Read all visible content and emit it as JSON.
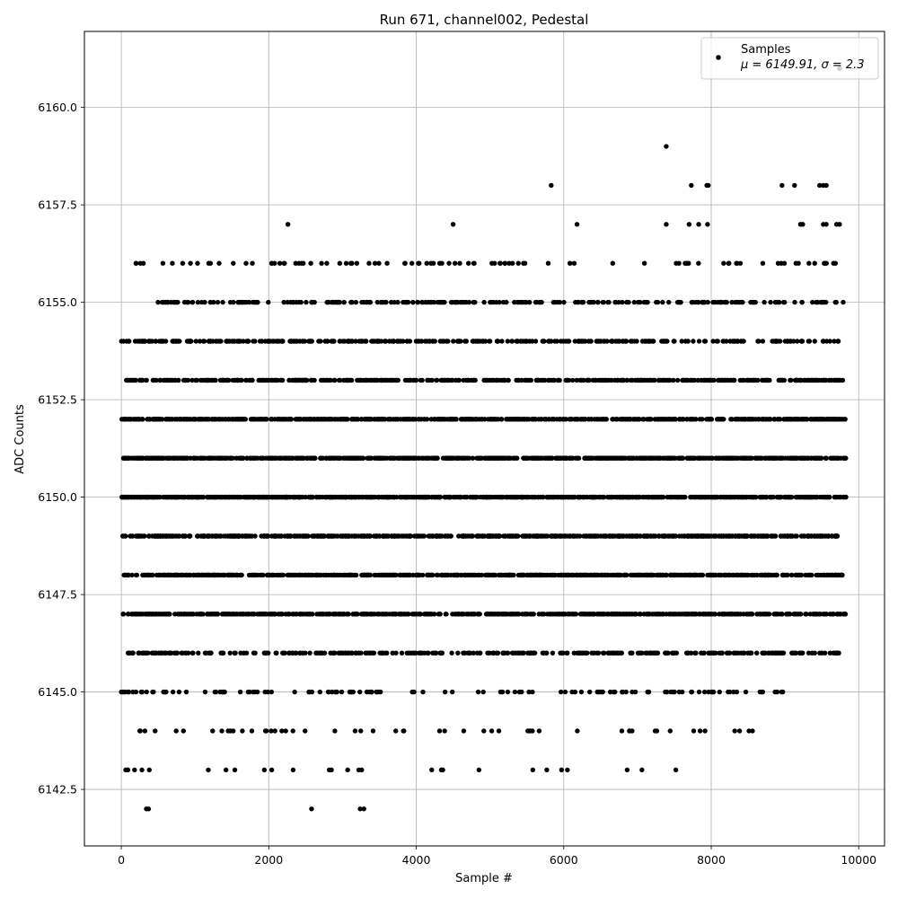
{
  "chart_data": {
    "type": "scatter",
    "title": "Run 671, channel002, Pedestal",
    "xlabel": "Sample #",
    "ylabel": "ADC Counts",
    "xlim": [
      -500,
      10350
    ],
    "ylim": [
      6141.05,
      6161.95
    ],
    "xticks": [
      0,
      2000,
      4000,
      6000,
      8000,
      10000
    ],
    "xtick_labels": [
      "0",
      "2000",
      "4000",
      "6000",
      "8000",
      "10000"
    ],
    "yticks": [
      6142.5,
      6145.0,
      6147.5,
      6150.0,
      6152.5,
      6155.0,
      6157.5,
      6160.0
    ],
    "ytick_labels": [
      "6142.5",
      "6145.0",
      "6147.5",
      "6150.0",
      "6152.5",
      "6155.0",
      "6157.5",
      "6160.0"
    ],
    "grid": true,
    "legend_position": "top-right",
    "legend": {
      "label": "Samples",
      "stats": "μ = 6149.91, σ = 2.3"
    },
    "marker_color": "#000000",
    "x_range": [
      0,
      9830
    ],
    "series": [
      {
        "bands": [
          {
            "y": 6142,
            "points": [
              {
                "x": 340,
                "y": 6142
              },
              {
                "x": 370,
                "y": 6142
              },
              {
                "x": 2580,
                "y": 6142
              },
              {
                "x": 3240,
                "y": 6142
              },
              {
                "x": 3290,
                "y": 6142
              }
            ]
          },
          {
            "y": 6143,
            "points": [
              {
                "x": 60,
                "y": 6143
              },
              {
                "x": 90,
                "y": 6143
              },
              {
                "x": 180,
                "y": 6143
              },
              {
                "x": 280,
                "y": 6143
              },
              {
                "x": 380,
                "y": 6143
              },
              {
                "x": 1180,
                "y": 6143
              },
              {
                "x": 1420,
                "y": 6143
              },
              {
                "x": 1540,
                "y": 6143
              },
              {
                "x": 1940,
                "y": 6143
              },
              {
                "x": 2040,
                "y": 6143
              },
              {
                "x": 2330,
                "y": 6143
              },
              {
                "x": 2820,
                "y": 6143
              },
              {
                "x": 2850,
                "y": 6143
              },
              {
                "x": 3070,
                "y": 6143
              },
              {
                "x": 3220,
                "y": 6143
              },
              {
                "x": 3260,
                "y": 6143
              },
              {
                "x": 4210,
                "y": 6143
              },
              {
                "x": 4340,
                "y": 6143
              },
              {
                "x": 4360,
                "y": 6143
              },
              {
                "x": 4850,
                "y": 6143
              },
              {
                "x": 5580,
                "y": 6143
              },
              {
                "x": 5770,
                "y": 6143
              },
              {
                "x": 5970,
                "y": 6143
              },
              {
                "x": 6050,
                "y": 6143
              },
              {
                "x": 6860,
                "y": 6143
              },
              {
                "x": 7060,
                "y": 6143
              },
              {
                "x": 7520,
                "y": 6143
              }
            ]
          },
          {
            "y": 6159,
            "points": [
              {
                "x": 7390,
                "y": 6159
              }
            ]
          },
          {
            "y": 6158,
            "points": [
              {
                "x": 5830,
                "y": 6158
              },
              {
                "x": 7730,
                "y": 6158
              },
              {
                "x": 7940,
                "y": 6158
              },
              {
                "x": 7960,
                "y": 6158
              },
              {
                "x": 8960,
                "y": 6158
              },
              {
                "x": 9130,
                "y": 6158
              },
              {
                "x": 9470,
                "y": 6158
              },
              {
                "x": 9520,
                "y": 6158
              },
              {
                "x": 9560,
                "y": 6158
              }
            ]
          },
          {
            "y": 6157,
            "points": [
              {
                "x": 2260,
                "y": 6157
              },
              {
                "x": 4500,
                "y": 6157
              },
              {
                "x": 6180,
                "y": 6157
              },
              {
                "x": 7390,
                "y": 6157
              },
              {
                "x": 7700,
                "y": 6157
              },
              {
                "x": 7830,
                "y": 6157
              },
              {
                "x": 7950,
                "y": 6157
              },
              {
                "x": 9210,
                "y": 6157
              },
              {
                "x": 9240,
                "y": 6157
              },
              {
                "x": 9520,
                "y": 6157
              },
              {
                "x": 9560,
                "y": 6157
              },
              {
                "x": 9700,
                "y": 6157
              },
              {
                "x": 9740,
                "y": 6157
              }
            ]
          },
          {
            "y": 6161,
            "points": [
              {
                "x": 9740,
                "y": 6161
              }
            ]
          }
        ],
        "density_bands": [
          {
            "y": 6144,
            "count": 55,
            "x_start": 200,
            "x_end": 8650
          },
          {
            "y": 6145,
            "count": 130,
            "x_start": 0,
            "x_end": 9030
          },
          {
            "y": 6146,
            "count": 350,
            "x_start": 0,
            "x_end": 9760
          },
          {
            "y": 6147,
            "count": 620,
            "x_start": 0,
            "x_end": 9830
          },
          {
            "y": 6148,
            "count": 750,
            "x_start": 0,
            "x_end": 9780
          },
          {
            "y": 6149,
            "count": 760,
            "x_start": 0,
            "x_end": 9730
          },
          {
            "y": 6150,
            "count": 820,
            "x_start": 0,
            "x_end": 9830
          },
          {
            "y": 6151,
            "count": 800,
            "x_start": 0,
            "x_end": 9830
          },
          {
            "y": 6152,
            "count": 680,
            "x_start": 0,
            "x_end": 9830
          },
          {
            "y": 6153,
            "count": 480,
            "x_start": 0,
            "x_end": 9830
          },
          {
            "y": 6154,
            "count": 360,
            "x_start": 0,
            "x_end": 9830
          },
          {
            "y": 6155,
            "count": 250,
            "x_start": 400,
            "x_end": 9830
          },
          {
            "y": 6156,
            "count": 95,
            "x_start": 30,
            "x_end": 9770
          }
        ]
      }
    ]
  }
}
